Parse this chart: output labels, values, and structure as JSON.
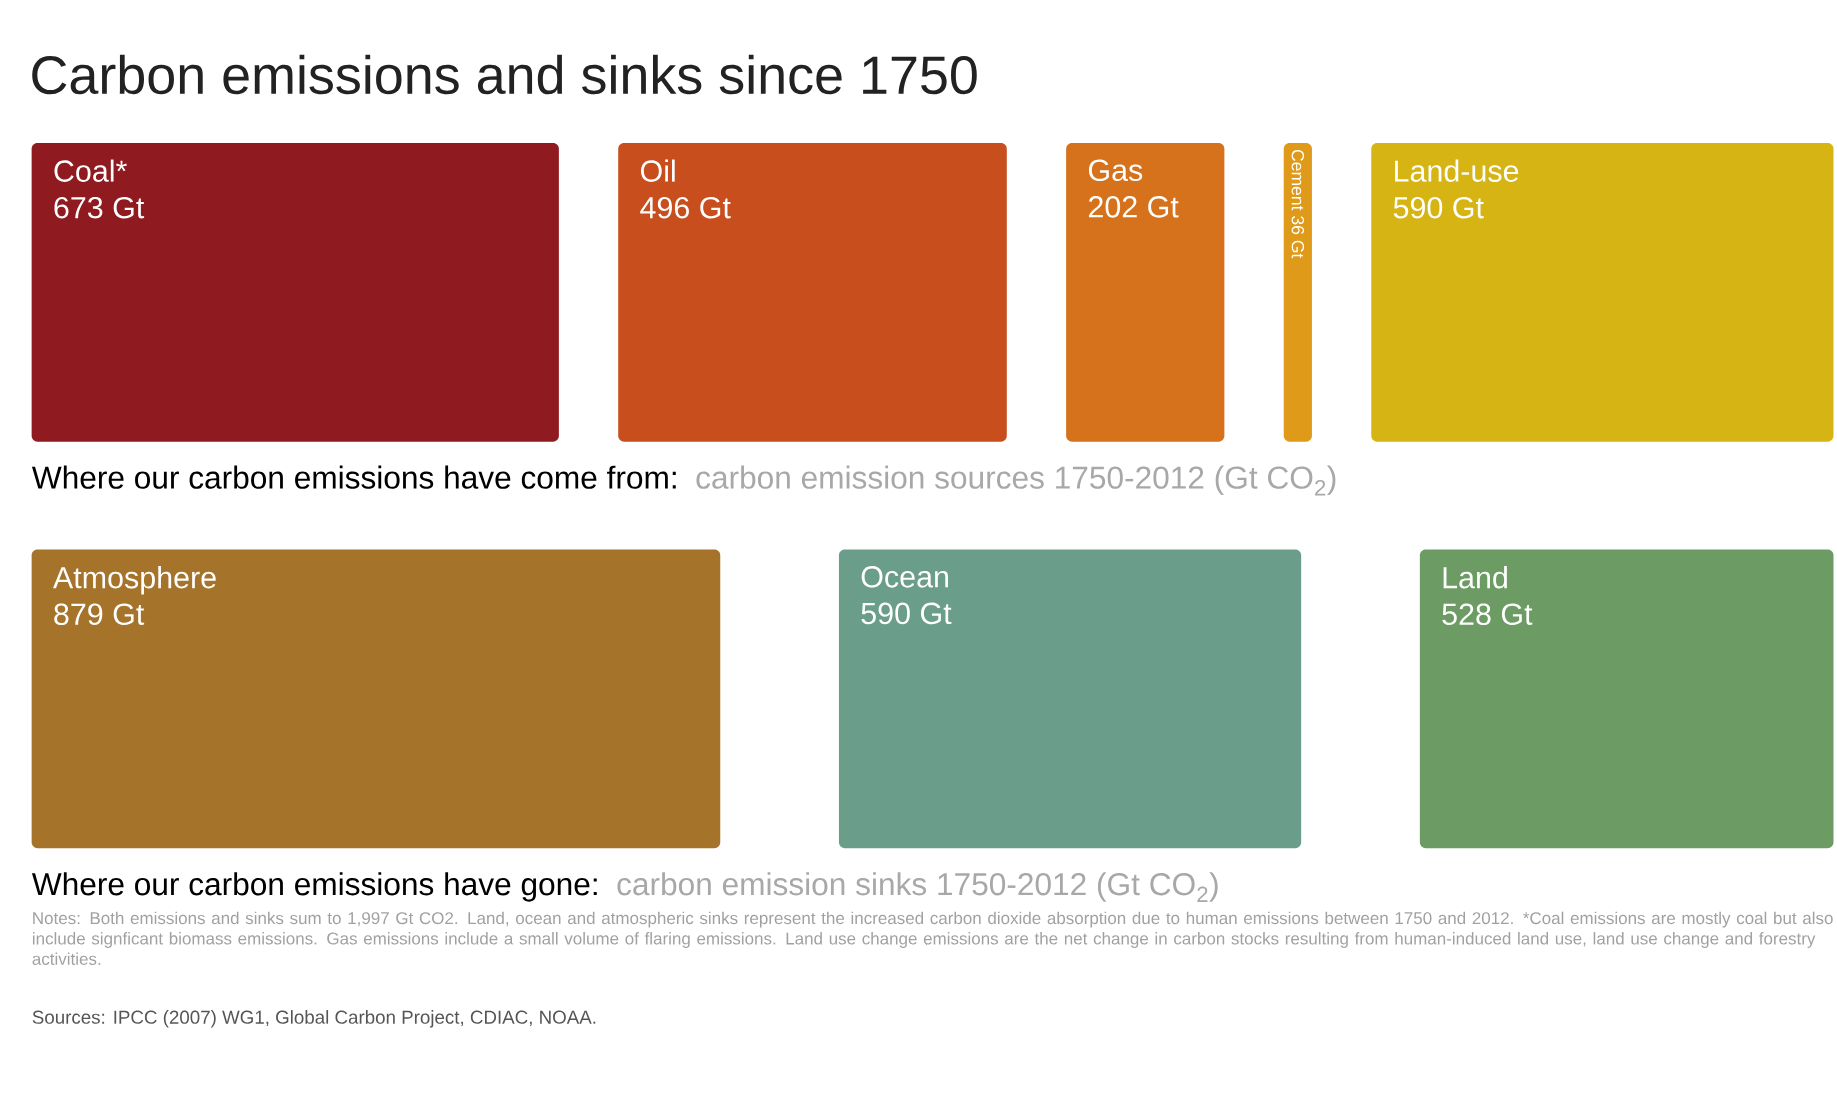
{
  "chart_data": [
    {
      "type": "other",
      "title": "Carbon emissions and sinks since 1750",
      "xlabel": "Where our carbon emissions have come from:",
      "subtitle": "carbon emission sources 1750-2012 (Gt CO$_{2}$)",
      "categories": [
        "Coal*",
        "Oil",
        "Gas",
        "Cement",
        "Land-use"
      ],
      "values": [
        673,
        496,
        202,
        36,
        590
      ],
      "value_labels": [
        "673 Gt",
        "496 Gt",
        "202 Gt",
        "36 Gt",
        "590 Gt"
      ],
      "colors": [
        "#8f1a1f",
        "#c84e1d",
        "#d5721b",
        "#e09a1a",
        "#d6b414"
      ]
    },
    {
      "type": "other",
      "xlabel": "Where our carbon emissions have gone:",
      "subtitle": "carbon emission sinks 1750-2012 (Gt CO$_{2}$)",
      "categories": [
        "Atmosphere",
        "Ocean",
        "Land"
      ],
      "values": [
        879,
        590,
        528
      ],
      "value_labels": [
        "879 Gt",
        "590 Gt",
        "528 Gt"
      ],
      "colors": [
        "#a5732a",
        "#6a9e8a",
        "#6c9b64"
      ],
      "annotations": [
        "Notes: Both emissions and sinks sum to 1,997 Gt CO2. Land, ocean and atmospheric sinks represent the increased carbon dioxide absorption due to human emissions between 1750 and 2012. *Coal emissions are mostly coal but also include signficant biomass emissions. Gas emissions include a small volume of flaring emissions. Land use change emissions are the net change in carbon stocks resulting from human-induced land use, land use change and forestry activities.",
        "Sources: IPCC (2007) WG1, Global Carbon Project, CDIAC, NOAA."
      ]
    }
  ]
}
